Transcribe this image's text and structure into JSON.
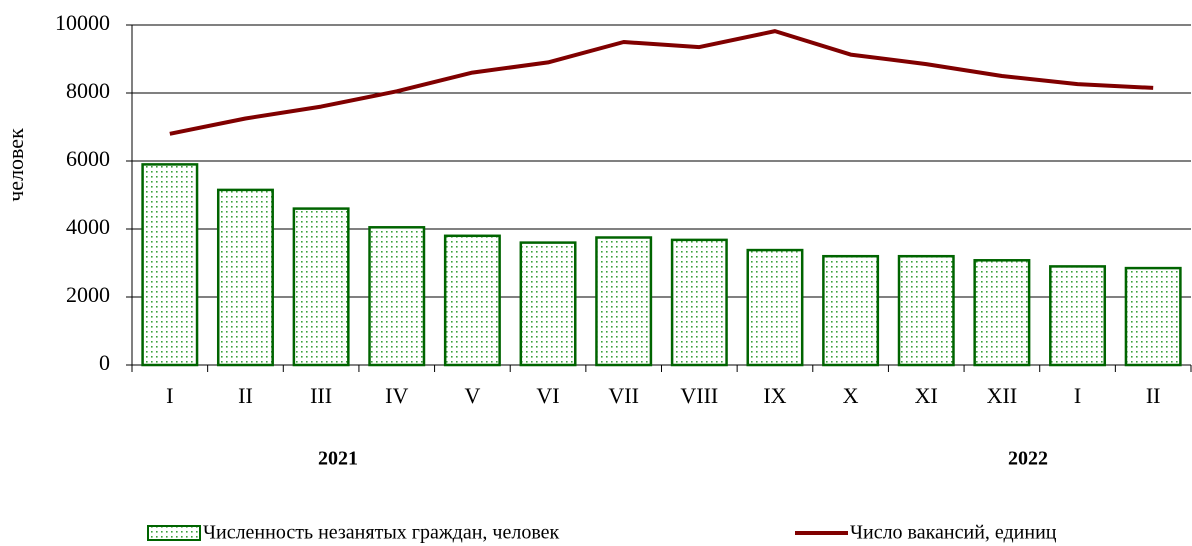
{
  "chart_data": {
    "type": "bar_line",
    "y_label": "человек",
    "categories": [
      "I",
      "II",
      "III",
      "IV",
      "V",
      "VI",
      "VII",
      "VIII",
      "IX",
      "X",
      "XI",
      "XII",
      "I",
      "II"
    ],
    "group_labels": [
      "2021",
      "2022"
    ],
    "series": [
      {
        "name": "Численность незанятых граждан, человек",
        "type": "bar",
        "color": "#006400",
        "values": [
          5900,
          5150,
          4600,
          4050,
          3800,
          3600,
          3750,
          3680,
          3380,
          3200,
          3200,
          3080,
          2900,
          2850
        ]
      },
      {
        "name": "Число вакансий, единиц",
        "type": "line",
        "color": "#800000",
        "values": [
          6800,
          7250,
          7600,
          8050,
          8600,
          8900,
          9500,
          9350,
          9820,
          9130,
          8850,
          8500,
          8260,
          8150
        ]
      }
    ],
    "ylim": [
      0,
      10000
    ],
    "yticks": [
      0,
      2000,
      4000,
      6000,
      8000,
      10000
    ],
    "grid": true
  }
}
